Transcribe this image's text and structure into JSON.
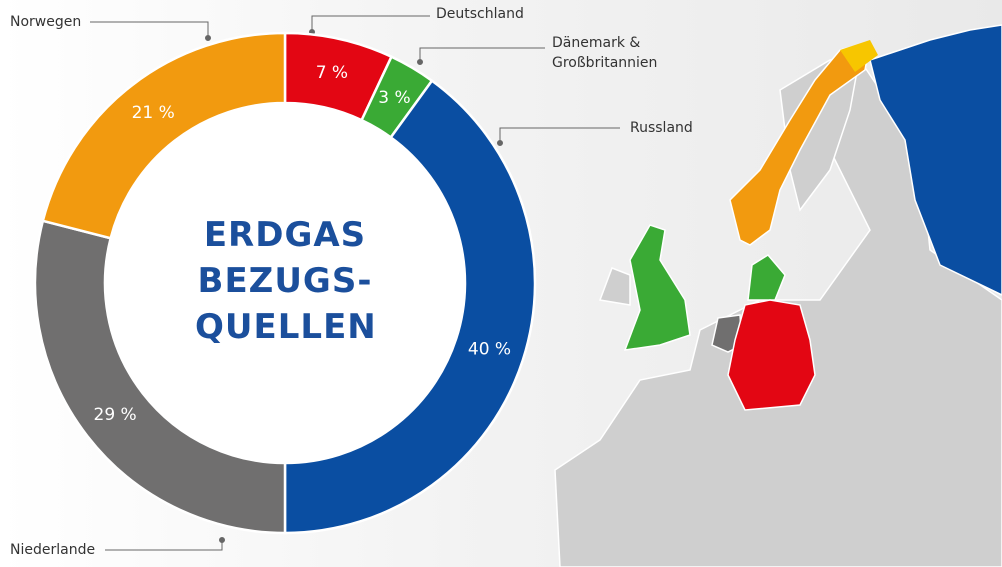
{
  "chart_data": {
    "type": "donut",
    "title": "ERDGAS BEZUGS- QUELLEN",
    "categories": [
      "Deutschland",
      "Dänemark & Großbritannien",
      "Russland",
      "Niederlande",
      "Norwegen"
    ],
    "values": [
      7,
      3,
      40,
      29,
      21
    ],
    "value_labels": [
      "7 %",
      "3 %",
      "40 %",
      "29 %",
      "21 %"
    ],
    "colors": [
      "#e30613",
      "#3aaa35",
      "#0a4ea2",
      "#706f6f",
      "#f29a0f"
    ]
  }
}
